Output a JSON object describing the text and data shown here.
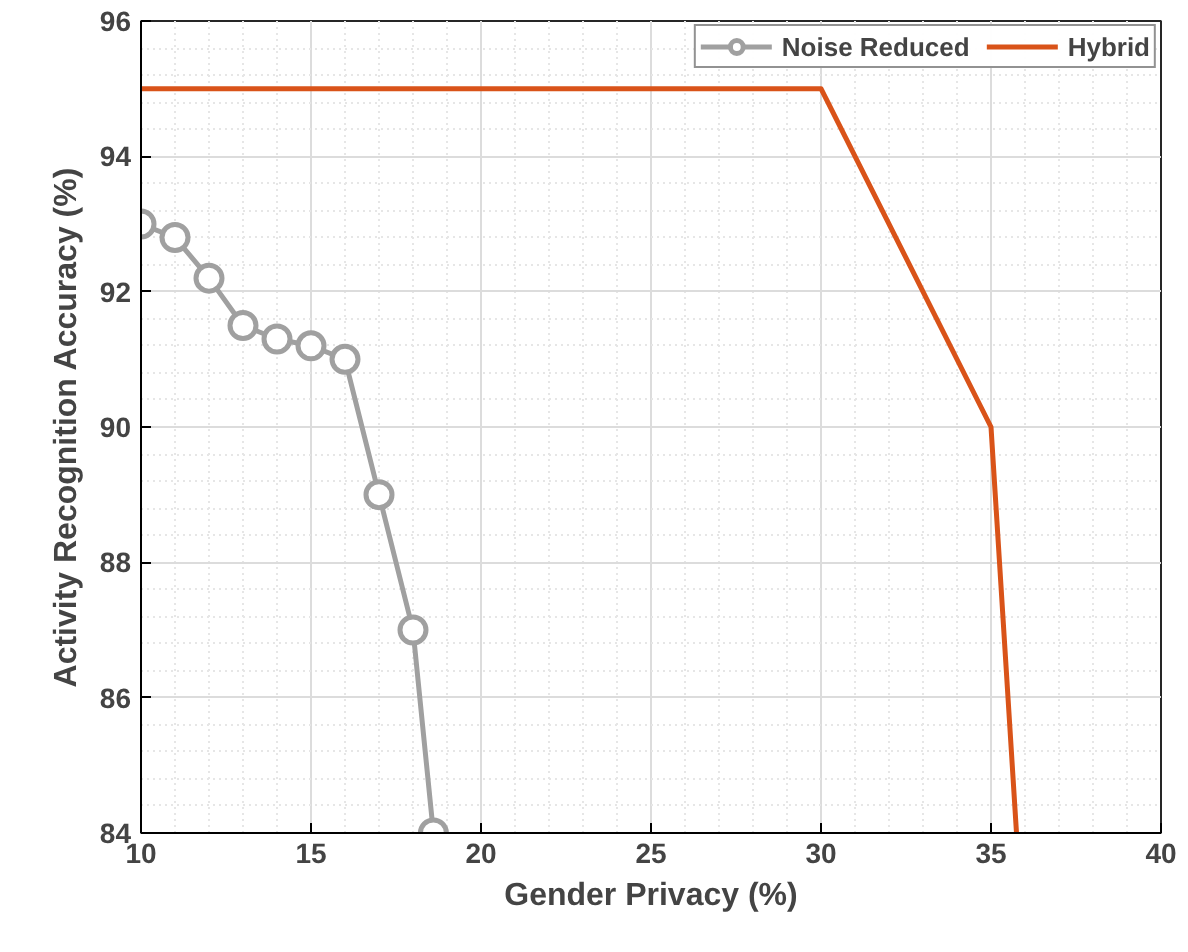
{
  "chart_data": {
    "type": "line",
    "xlabel": "Gender Privacy (%)",
    "ylabel": "Activity Recognition Accuracy (%)",
    "xlim": [
      10,
      40
    ],
    "ylim": [
      84,
      96
    ],
    "xticks": [
      10,
      15,
      20,
      25,
      30,
      35,
      40
    ],
    "yticks": [
      84,
      86,
      88,
      90,
      92,
      94,
      96
    ],
    "grid": true,
    "legend": "top right",
    "series": [
      {
        "name": "Noise Reduced",
        "color": "#a0a0a0",
        "marker": "circle",
        "x": [
          10,
          11,
          12,
          13,
          14,
          15,
          16,
          17,
          18,
          18.6
        ],
        "values": [
          93,
          92.8,
          92.2,
          91.5,
          91.3,
          91.2,
          91,
          89,
          87,
          84
        ]
      },
      {
        "name": "Hybrid",
        "color": "#d95319",
        "marker": "none",
        "x": [
          10,
          30,
          35,
          35.75
        ],
        "values": [
          95,
          95,
          90,
          84
        ]
      }
    ]
  }
}
